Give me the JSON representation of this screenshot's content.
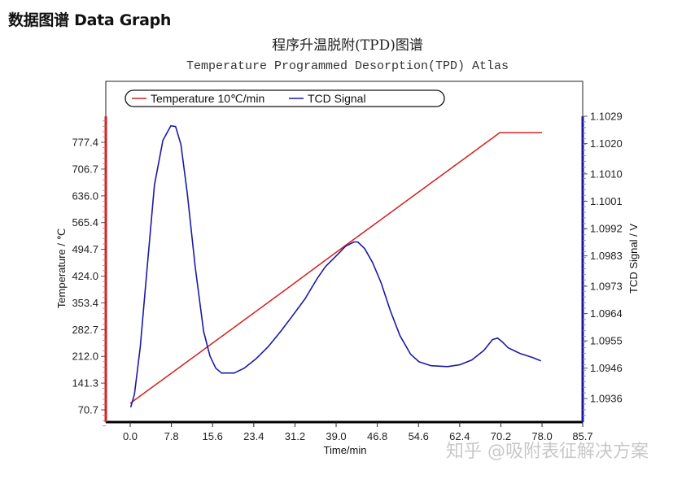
{
  "page": {
    "heading": "数据图谱 Data Graph"
  },
  "chart": {
    "title_cn": "程序升温脱附(TPD)图谱",
    "title_en": "Temperature Programmed Desorption(TPD) Atlas",
    "legend": {
      "temperature_label": "Temperature 10℃/min",
      "tcd_label": "TCD Signal"
    },
    "x_axis_label": "Time/min",
    "left_axis_label": "Temperature / ℃",
    "right_axis_label": "TCD Signal / V",
    "x_ticks": [
      "0.0",
      "7.8",
      "15.6",
      "23.4",
      "31.2",
      "39.0",
      "46.8",
      "54.6",
      "62.4",
      "70.2",
      "78.0",
      "85.7"
    ],
    "left_ticks": [
      "777.4",
      "706.7",
      "636.0",
      "565.4",
      "494.7",
      "424.0",
      "353.4",
      "282.7",
      "212.0",
      "141.3",
      "70.7"
    ],
    "right_ticks": [
      "1.1029",
      "1.1020",
      "1.1010",
      "1.1001",
      "1.0992",
      "1.0983",
      "1.0973",
      "1.0964",
      "1.0955",
      "1.0946",
      "1.0936"
    ],
    "colors": {
      "temperature": "#d42020",
      "tcd": "#1a1aa6",
      "frame": "#000000"
    },
    "watermark": "知乎 @吸附表征解决方案"
  },
  "chart_data": {
    "type": "line",
    "title": "程序升温脱附(TPD)图谱 / Temperature Programmed Desorption(TPD) Atlas",
    "xlabel": "Time/min",
    "ylabel": "Temperature / ℃",
    "y2label": "TCD Signal / V",
    "xlim": [
      0.0,
      85.7
    ],
    "ylim": [
      40,
      830
    ],
    "y2lim": [
      1.093,
      1.1035
    ],
    "grid": false,
    "legend_position": "top-left inside",
    "x_ticks": [
      0.0,
      7.8,
      15.6,
      23.4,
      31.2,
      39.0,
      46.8,
      54.6,
      62.4,
      70.2,
      78.0,
      85.7
    ],
    "y_ticks": [
      70.7,
      141.3,
      212.0,
      282.7,
      353.4,
      424.0,
      494.7,
      565.4,
      636.0,
      706.7,
      777.4
    ],
    "y2_ticks": [
      1.0936,
      1.0946,
      1.0955,
      1.0964,
      1.0973,
      1.0983,
      1.0992,
      1.1001,
      1.101,
      1.102,
      1.1029
    ],
    "series": [
      {
        "name": "Temperature 10℃/min",
        "axis": "left",
        "color": "#d42020",
        "x": [
          0.0,
          10.0,
          20.0,
          30.0,
          40.0,
          50.0,
          60.0,
          70.0,
          74.0,
          78.0
        ],
        "y": [
          88,
          190,
          292,
          394,
          497,
          599,
          701,
          803,
          803,
          803
        ]
      },
      {
        "name": "TCD Signal",
        "axis": "right",
        "color": "#1a1aa6",
        "x": [
          0.1,
          0.8,
          1.9,
          3.1,
          4.6,
          6.2,
          7.7,
          8.6,
          9.6,
          10.8,
          12.3,
          13.9,
          15.1,
          16.2,
          17.3,
          19.7,
          21.6,
          23.9,
          26.2,
          28.5,
          30.8,
          33.1,
          35.4,
          37.0,
          39.3,
          40.8,
          42.4,
          43.1,
          44.4,
          45.9,
          47.5,
          49.3,
          51.1,
          53.1,
          54.7,
          57.0,
          60.1,
          62.4,
          64.7,
          67.0,
          68.6,
          69.6,
          70.5,
          71.6,
          73.9,
          76.2,
          77.8
        ],
        "y": [
          1.09331,
          1.09374,
          1.09528,
          1.09769,
          1.10064,
          1.10211,
          1.10259,
          1.10256,
          1.10197,
          1.10037,
          1.09795,
          1.09581,
          1.095,
          1.0946,
          1.09444,
          1.09444,
          1.0946,
          1.09492,
          1.09532,
          1.09581,
          1.09634,
          1.09688,
          1.09755,
          1.09795,
          1.09835,
          1.09862,
          1.09876,
          1.09876,
          1.09854,
          1.09808,
          1.09742,
          1.09648,
          1.09567,
          1.09506,
          1.09481,
          1.09468,
          1.09465,
          1.09471,
          1.09487,
          1.09519,
          1.09554,
          1.09559,
          1.09546,
          1.09527,
          1.09508,
          1.09495,
          1.09484
        ]
      }
    ]
  }
}
